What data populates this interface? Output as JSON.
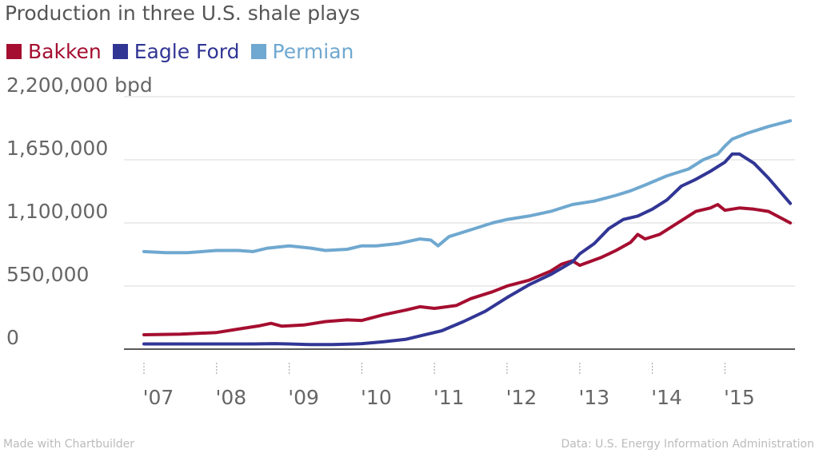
{
  "chart_data": {
    "type": "line",
    "title": "Production in three U.S. shale plays",
    "ylabel": "",
    "ylim": [
      0,
      2200000
    ],
    "y_ticks": [
      0,
      550000,
      1100000,
      1650000,
      2200000
    ],
    "y_tick_labels": [
      "0",
      "550,000",
      "1,100,000",
      "1,650,000",
      "2,200,000 bpd"
    ],
    "x_ticks": [
      2007,
      2008,
      2009,
      2010,
      2011,
      2012,
      2013,
      2014,
      2015
    ],
    "x_tick_labels": [
      "'07",
      "'08",
      "'09",
      "'10",
      "'11",
      "'12",
      "'13",
      "'14",
      "'15"
    ],
    "xlim": [
      2007,
      2015.9
    ],
    "legend": "top-left",
    "grid": true,
    "series": [
      {
        "name": "Bakken",
        "color": "#a50e30",
        "x": [
          2007.0,
          2007.5,
          2008.0,
          2008.3,
          2008.6,
          2008.75,
          2008.9,
          2009.2,
          2009.5,
          2009.8,
          2010.0,
          2010.3,
          2010.6,
          2010.8,
          2011.0,
          2011.3,
          2011.5,
          2011.8,
          2012.0,
          2012.3,
          2012.6,
          2012.75,
          2012.9,
          2013.0,
          2013.3,
          2013.5,
          2013.7,
          2013.8,
          2013.9,
          2014.1,
          2014.3,
          2014.6,
          2014.8,
          2014.9,
          2015.0,
          2015.2,
          2015.4,
          2015.6,
          2015.9
        ],
        "values": [
          125000,
          130000,
          145000,
          175000,
          205000,
          225000,
          200000,
          210000,
          240000,
          255000,
          250000,
          300000,
          340000,
          370000,
          355000,
          380000,
          440000,
          500000,
          550000,
          600000,
          680000,
          740000,
          770000,
          730000,
          800000,
          860000,
          930000,
          1000000,
          960000,
          1000000,
          1080000,
          1200000,
          1230000,
          1260000,
          1210000,
          1230000,
          1220000,
          1200000,
          1100000
        ]
      },
      {
        "name": "Eagle Ford",
        "color": "#313695",
        "x": [
          2007.0,
          2007.5,
          2008.0,
          2008.5,
          2008.8,
          2009.0,
          2009.3,
          2009.6,
          2009.9,
          2010.0,
          2010.3,
          2010.6,
          2010.9,
          2011.1,
          2011.4,
          2011.7,
          2012.0,
          2012.3,
          2012.6,
          2012.9,
          2013.0,
          2013.2,
          2013.4,
          2013.6,
          2013.8,
          2014.0,
          2014.2,
          2014.4,
          2014.6,
          2014.8,
          2015.0,
          2015.1,
          2015.2,
          2015.4,
          2015.6,
          2015.9
        ],
        "values": [
          45000,
          45000,
          45000,
          45000,
          48000,
          45000,
          40000,
          40000,
          45000,
          48000,
          65000,
          85000,
          130000,
          160000,
          240000,
          330000,
          450000,
          560000,
          650000,
          760000,
          830000,
          920000,
          1050000,
          1130000,
          1160000,
          1220000,
          1300000,
          1420000,
          1480000,
          1550000,
          1630000,
          1700000,
          1700000,
          1620000,
          1490000,
          1270000
        ]
      },
      {
        "name": "Permian",
        "color": "#6fa8d0",
        "x": [
          2007.0,
          2007.3,
          2007.6,
          2008.0,
          2008.3,
          2008.5,
          2008.7,
          2009.0,
          2009.3,
          2009.5,
          2009.8,
          2010.0,
          2010.2,
          2010.5,
          2010.8,
          2010.95,
          2011.05,
          2011.2,
          2011.5,
          2011.8,
          2012.0,
          2012.3,
          2012.6,
          2012.9,
          2013.2,
          2013.5,
          2013.7,
          2013.9,
          2014.2,
          2014.5,
          2014.7,
          2014.9,
          2015.0,
          2015.1,
          2015.3,
          2015.6,
          2015.9
        ],
        "values": [
          850000,
          840000,
          840000,
          860000,
          860000,
          850000,
          880000,
          900000,
          880000,
          860000,
          870000,
          900000,
          900000,
          920000,
          960000,
          950000,
          900000,
          980000,
          1040000,
          1100000,
          1130000,
          1160000,
          1200000,
          1260000,
          1290000,
          1340000,
          1380000,
          1430000,
          1510000,
          1570000,
          1650000,
          1700000,
          1770000,
          1830000,
          1880000,
          1940000,
          1990000
        ]
      }
    ]
  },
  "footer": {
    "left": "Made with Chartbuilder",
    "right": "Data: U.S. Energy Information Administration"
  }
}
